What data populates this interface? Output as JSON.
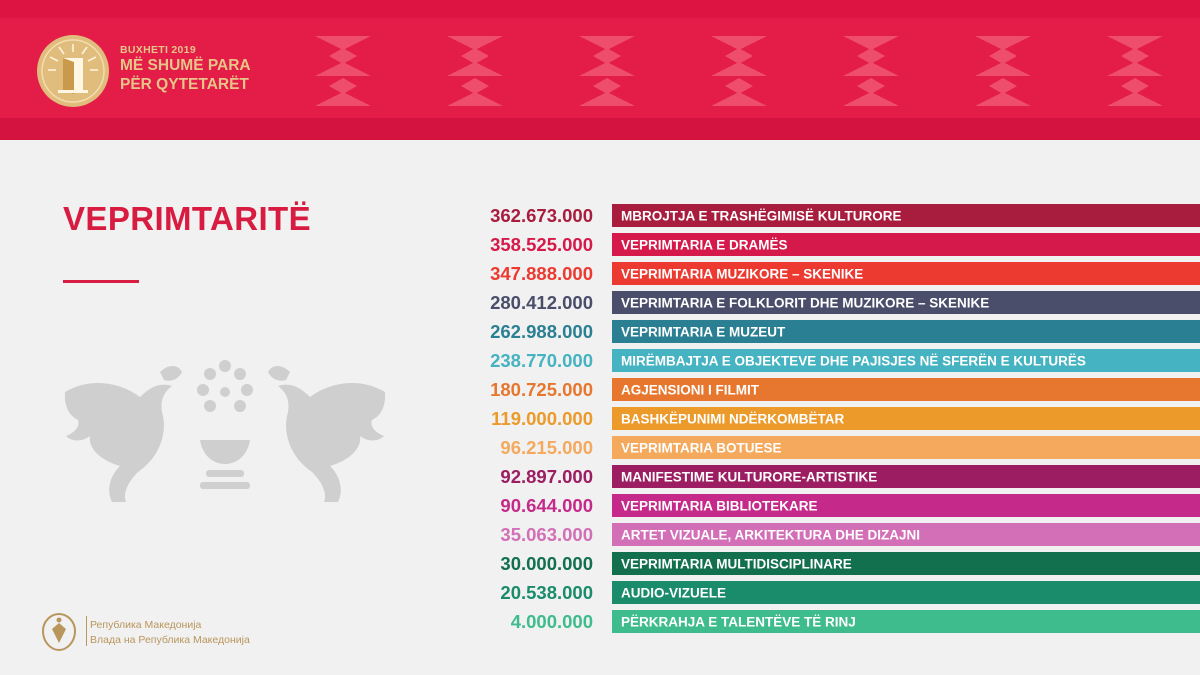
{
  "header": {
    "brand_year": "BUXHETI 2019",
    "brand_line1": "MË SHUMË PARA",
    "brand_line2": "PËR QYTETARËT",
    "logo_icon": "open-door-sunburst-icon",
    "colors": {
      "banner": "#e31c48",
      "brand_gold": "#e7c488"
    }
  },
  "page": {
    "title": "VEPRIMTARITË"
  },
  "footer": {
    "line1": "Република Македонија",
    "line2": "Влада на Република Македонија",
    "emblem_icon": "coat-of-arms-icon"
  },
  "chart_data": {
    "type": "bar",
    "orientation": "horizontal",
    "title": "VEPRIMTARITË",
    "categories": [
      "MBROJTJA E TRASHËGIMISË KULTURORE",
      "VEPRIMTARIA E DRAMËS",
      "VEPRIMTARIA  MUZIKORE – SKENIKE",
      "VEPRIMTARIA  E FOLKLORIT DHE MUZIKORE – SKENIKE",
      "VEPRIMTARIA  E MUZEUT",
      "MIRËMBAJTJA E OBJEKTEVE DHE PAJISJES NË SFERËN E KULTURËS",
      "AGJENSIONI I FILMIT",
      "BASHKËPUNIMI NDËRKOMBËTAR",
      "VEPRIMTARIA BOTUESE",
      "MANIFESTIME KULTURORE-ARTISTIKE",
      "VEPRIMTARIA BIBLIOTEKARE",
      "ARTET VIZUALE, ARKITEKTURA DHE DIZAJNI",
      "VEPRIMTARIA MULTIDISCIPLINARE",
      "AUDIO-VIZUELE",
      "PËRKRAHJA E TALENTËVE TË RINJ"
    ],
    "values": [
      362673000,
      358525000,
      347888000,
      280412000,
      262988000,
      238770000,
      180725000,
      119000000,
      96215000,
      92897000,
      90644000,
      35063000,
      30000000,
      20538000,
      4000000
    ],
    "value_labels": [
      "362.673.000",
      "358.525.000",
      "347.888.000",
      "280.412.000",
      "262.988.000",
      "238.770.000",
      "180.725.000",
      "119.000.000",
      "96.215.000",
      "92.897.000",
      "90.644.000",
      "35.063.000",
      "30.000.000",
      "20.538.000",
      "4.000.000"
    ],
    "colors": [
      "#a81d3d",
      "#d5194a",
      "#ec3a31",
      "#4a4e6a",
      "#2b7f92",
      "#45b3c1",
      "#e7772e",
      "#ec9a2a",
      "#f4a95c",
      "#9c1d61",
      "#c52a8a",
      "#d26fb7",
      "#12704f",
      "#1a8b6b",
      "#3fbc8d"
    ]
  }
}
